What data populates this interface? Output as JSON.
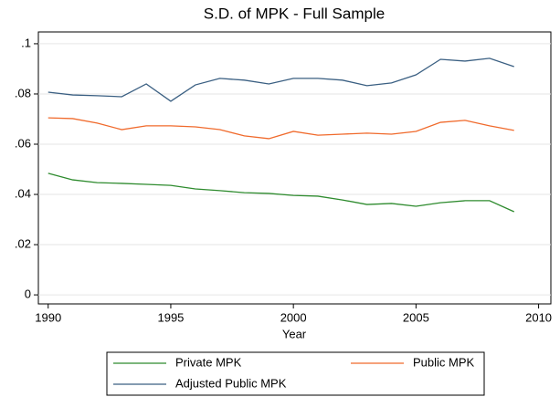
{
  "chart_data": {
    "type": "line",
    "title": "S.D. of MPK - Full Sample",
    "x_label": "Year",
    "x": [
      1990,
      1991,
      1992,
      1993,
      1994,
      1995,
      1996,
      1997,
      1998,
      1999,
      2000,
      2001,
      2002,
      2003,
      2004,
      2005,
      2006,
      2007,
      2008,
      2009
    ],
    "series": [
      {
        "name": "Private MPK",
        "color": "#2e8b2e",
        "values": [
          0.0484,
          0.0458,
          0.0447,
          0.0444,
          0.044,
          0.0436,
          0.0422,
          0.0415,
          0.0407,
          0.0404,
          0.0396,
          0.0393,
          0.0378,
          0.036,
          0.0364,
          0.0353,
          0.0367,
          0.0375,
          0.0375,
          0.0331
        ]
      },
      {
        "name": "Public MPK",
        "color": "#f06a2c",
        "values": [
          0.0705,
          0.0702,
          0.0684,
          0.0658,
          0.0673,
          0.0673,
          0.0669,
          0.0658,
          0.0633,
          0.0622,
          0.0651,
          0.0636,
          0.064,
          0.0644,
          0.064,
          0.0651,
          0.0687,
          0.0695,
          0.0673,
          0.0655
        ]
      },
      {
        "name": "Adjusted Public MPK",
        "color": "#3a5f82",
        "values": [
          0.0807,
          0.0796,
          0.0793,
          0.0789,
          0.084,
          0.0771,
          0.0836,
          0.0862,
          0.0855,
          0.084,
          0.0862,
          0.0862,
          0.0855,
          0.0833,
          0.0844,
          0.0876,
          0.0938,
          0.0931,
          0.0942,
          0.0909
        ]
      }
    ],
    "xlim": [
      1989.6,
      2010.5
    ],
    "xticks": [
      1990,
      1995,
      2000,
      2005,
      2010
    ],
    "ylim": [
      -0.0036,
      0.1047
    ],
    "yticks": [
      0,
      {
        "value": 0.02,
        "label": ".02"
      },
      {
        "value": 0.04,
        "label": ".04"
      },
      {
        "value": 0.06,
        "label": ".06"
      },
      {
        "value": 0.08,
        "label": ".08"
      },
      {
        "value": 0.1,
        "label": ".1"
      }
    ],
    "grid": true
  }
}
